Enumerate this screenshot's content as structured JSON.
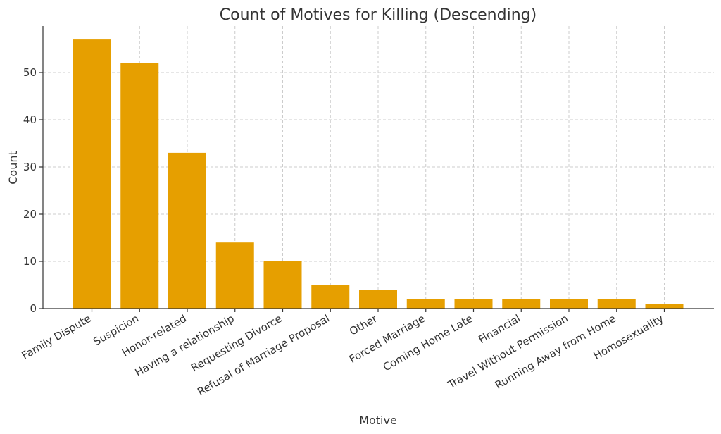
{
  "chart_data": {
    "type": "bar",
    "title": "Count of Motives for Killing (Descending)",
    "xlabel": "Motive",
    "ylabel": "Count",
    "categories": [
      "Family Dispute",
      "Suspicion",
      "Honor-related",
      "Having a relationship",
      "Requesting Divorce",
      "Refusal of Marriage Proposal",
      "Other",
      "Forced Marriage",
      "Coming Home Late",
      "Financial",
      "Travel Without Permission",
      "Running Away from Home",
      "Homosexuality"
    ],
    "values": [
      57,
      52,
      33,
      14,
      10,
      5,
      4,
      2,
      2,
      2,
      2,
      2,
      1
    ],
    "ylim": [
      0,
      59.85
    ],
    "yticks": [
      0,
      10,
      20,
      30,
      40,
      50
    ],
    "grid": true,
    "bar_color": "#E69F00"
  }
}
